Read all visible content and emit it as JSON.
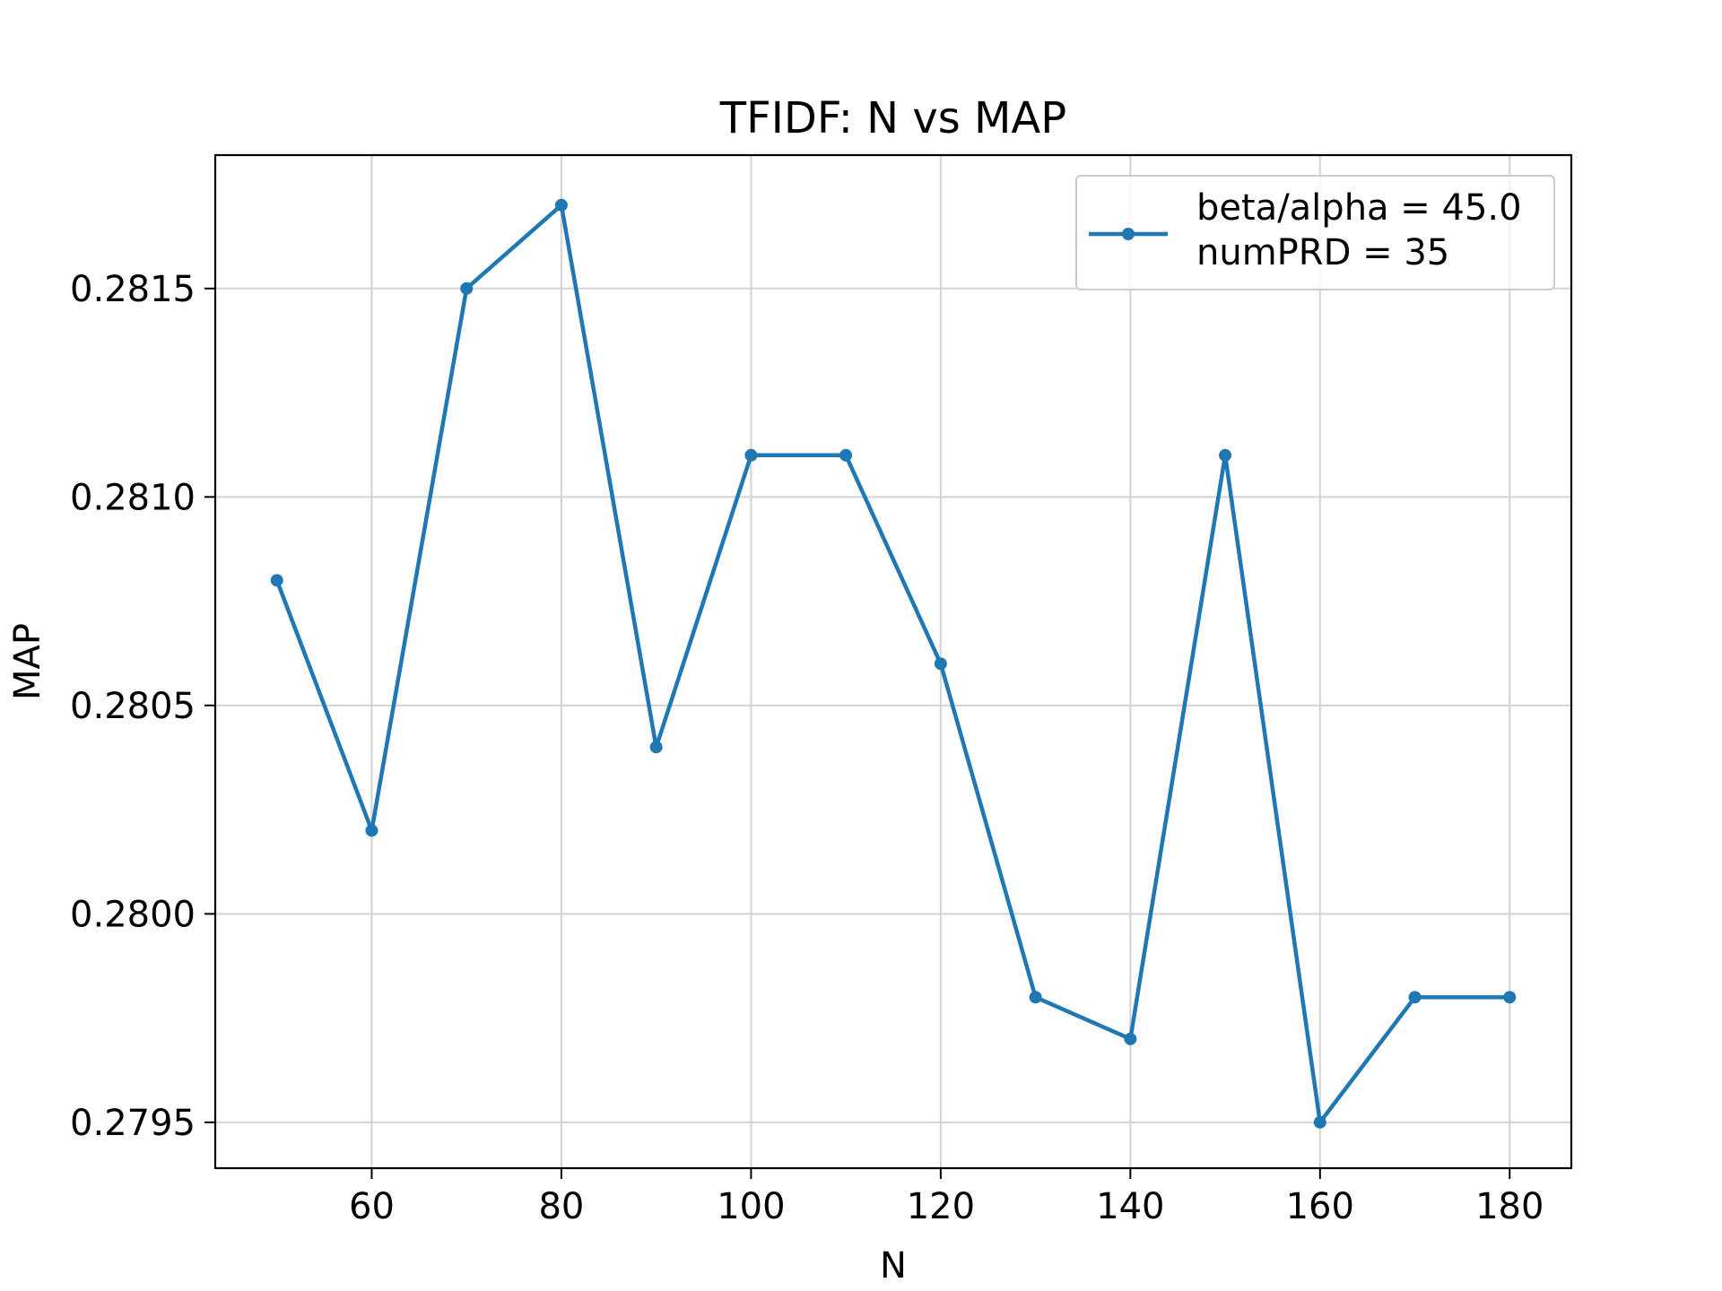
{
  "chart_data": {
    "type": "line",
    "title": "TFIDF: N vs MAP",
    "xlabel": "N",
    "ylabel": "MAP",
    "x": [
      50,
      60,
      70,
      80,
      90,
      100,
      110,
      120,
      130,
      140,
      150,
      160,
      170,
      180
    ],
    "series": [
      {
        "legend_lines": [
          "beta/alpha = 45.0",
          "numPRD = 35"
        ],
        "values": [
          0.2808,
          0.2802,
          0.2815,
          0.2817,
          0.2804,
          0.2811,
          0.2811,
          0.2806,
          0.2798,
          0.2797,
          0.2811,
          0.2795,
          0.2798,
          0.2798
        ],
        "color": "#1f77b4",
        "marker": "circle"
      }
    ],
    "xlim": [
      43.5,
      186.5
    ],
    "ylim": [
      0.27939,
      0.28182
    ],
    "xticks": [
      60,
      80,
      100,
      120,
      140,
      160,
      180
    ],
    "xtick_labels": [
      "60",
      "80",
      "100",
      "120",
      "140",
      "160",
      "180"
    ],
    "yticks": [
      0.2795,
      0.28,
      0.2805,
      0.281,
      0.2815
    ],
    "ytick_labels": [
      "0.2795",
      "0.2800",
      "0.2805",
      "0.2810",
      "0.2815"
    ],
    "grid": true,
    "legend_position": "upper right"
  }
}
